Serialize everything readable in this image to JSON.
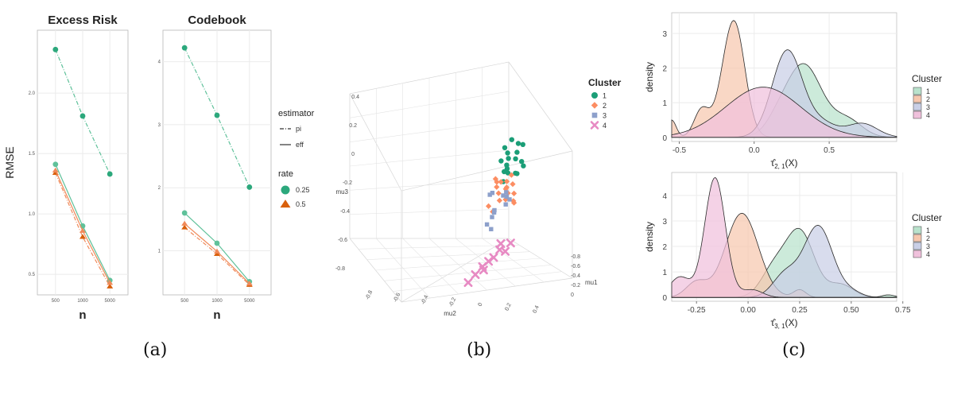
{
  "captions": {
    "a": "(a)",
    "b": "(b)",
    "c": "(c)"
  },
  "colors": {
    "teal": "#2ca87c",
    "teal_light": "#5fc19a",
    "orange": "#d9600c",
    "orange_light": "#f08a5a",
    "c1": "#1b9e77",
    "c2": "#fc8d62",
    "c3": "#8da0cb",
    "c4": "#e78ac3",
    "d1": "#b9e2cc",
    "d2": "#f6c7ae",
    "d3": "#c9cfe6",
    "d4": "#f0c1dc"
  },
  "chart_data": [
    {
      "id": "a1",
      "type": "line",
      "title": "Excess Risk",
      "xlabel": "n",
      "ylabel": "RMSE",
      "categories": [
        "500",
        "1000",
        "5000"
      ],
      "yticks": [
        0.5,
        1.0,
        1.5,
        2.0
      ],
      "ytick_labels": [
        "0.5",
        "1.0",
        "1.5",
        "2.0"
      ],
      "ylim": [
        0.33,
        2.52
      ],
      "series": [
        {
          "name": "0.25 pi",
          "rate": "0.25",
          "estimator": "pi",
          "values": [
            2.36,
            1.81,
            1.33
          ]
        },
        {
          "name": "0.25 eff",
          "rate": "0.25",
          "estimator": "eff",
          "values": [
            1.41,
            0.9,
            0.45
          ]
        },
        {
          "name": "0.5 pi",
          "rate": "0.5",
          "estimator": "pi",
          "values": [
            1.34,
            0.81,
            0.4
          ]
        },
        {
          "name": "0.5 eff",
          "rate": "0.5",
          "estimator": "eff",
          "values": [
            1.36,
            0.86,
            0.43
          ]
        }
      ]
    },
    {
      "id": "a2",
      "type": "line",
      "title": "Codebook",
      "xlabel": "n",
      "ylabel": "",
      "categories": [
        "500",
        "1000",
        "5000"
      ],
      "yticks": [
        1,
        2,
        3,
        4
      ],
      "ytick_labels": [
        "1",
        "2",
        "3",
        "4"
      ],
      "ylim": [
        0.3,
        4.5
      ],
      "series": [
        {
          "name": "0.25 pi",
          "rate": "0.25",
          "estimator": "pi",
          "values": [
            4.22,
            3.15,
            2.01
          ]
        },
        {
          "name": "0.25 eff",
          "rate": "0.25",
          "estimator": "eff",
          "values": [
            1.6,
            1.12,
            0.51
          ]
        },
        {
          "name": "0.5 pi",
          "rate": "0.5",
          "estimator": "pi",
          "values": [
            1.37,
            0.95,
            0.46
          ]
        },
        {
          "name": "0.5 eff",
          "rate": "0.5",
          "estimator": "eff",
          "values": [
            1.43,
            0.99,
            0.48
          ]
        }
      ]
    },
    {
      "id": "b",
      "type": "scatter",
      "title": "",
      "axes": {
        "x": "mu1",
        "y": "mu2",
        "z": "mu3"
      },
      "axis_tick_labels": {
        "mu3": [
          "0.4",
          "0.2",
          "0",
          "-0.2",
          "-0.4",
          "-0.6",
          "-0.8"
        ],
        "mu2": [
          "-0.8",
          "-0.6",
          "-0.4",
          "-0.2",
          "0",
          "0.2",
          "0.4"
        ],
        "mu1": [
          "-0.8",
          "-0.6",
          "-0.4",
          "-0.2",
          "0"
        ]
      },
      "legend": {
        "title": "Cluster",
        "position": "top-right",
        "entries": [
          "1",
          "2",
          "3",
          "4"
        ]
      },
      "series": [
        {
          "name": "1",
          "values": [
            [
              -0.07,
              0.37,
              0.33
            ],
            [
              -0.02,
              0.3,
              0.25
            ],
            [
              -0.05,
              0.28,
              0.18
            ],
            [
              -0.1,
              0.35,
              0.4
            ],
            [
              0.0,
              0.33,
              0.22
            ],
            [
              -0.08,
              0.25,
              0.3
            ],
            [
              -0.03,
              0.4,
              0.28
            ],
            [
              -0.12,
              0.31,
              0.15
            ],
            [
              0.02,
              0.36,
              0.35
            ],
            [
              -0.06,
              0.22,
              0.2
            ],
            [
              -0.09,
              0.42,
              0.38
            ],
            [
              -0.01,
              0.27,
              0.12
            ],
            [
              -0.04,
              0.34,
              0.45
            ],
            [
              -0.11,
              0.38,
              0.24
            ],
            [
              0.03,
              0.29,
              0.3
            ],
            [
              -0.07,
              0.45,
              0.2
            ],
            [
              -0.05,
              0.24,
              0.4
            ],
            [
              -0.02,
              0.41,
              0.16
            ]
          ]
        },
        {
          "name": "2",
          "values": [
            [
              -0.52,
              -0.3,
              0.05
            ],
            [
              -0.48,
              -0.25,
              0.1
            ],
            [
              -0.55,
              -0.35,
              -0.05
            ],
            [
              -0.45,
              -0.2,
              0.0
            ],
            [
              -0.5,
              -0.4,
              0.12
            ],
            [
              -0.58,
              -0.28,
              -0.1
            ],
            [
              -0.44,
              -0.33,
              0.08
            ],
            [
              -0.53,
              -0.22,
              -0.02
            ],
            [
              -0.47,
              -0.38,
              0.15
            ],
            [
              -0.56,
              -0.45,
              0.02
            ],
            [
              -0.49,
              -0.18,
              -0.08
            ],
            [
              -0.6,
              -0.32,
              0.06
            ],
            [
              -0.42,
              -0.27,
              -0.04
            ],
            [
              -0.51,
              -0.36,
              0.11
            ],
            [
              -0.54,
              -0.5,
              -0.12
            ],
            [
              -0.46,
              -0.24,
              0.04
            ],
            [
              -0.57,
              -0.3,
              0.14
            ],
            [
              -0.43,
              -0.42,
              -0.06
            ]
          ]
        },
        {
          "name": "3",
          "values": [
            [
              -0.1,
              0.05,
              -0.1
            ],
            [
              -0.15,
              0.1,
              0.0
            ],
            [
              -0.08,
              -0.02,
              -0.2
            ],
            [
              -0.2,
              0.12,
              -0.05
            ],
            [
              -0.12,
              0.0,
              0.05
            ],
            [
              -0.05,
              0.08,
              -0.15
            ],
            [
              -0.18,
              -0.05,
              -0.12
            ],
            [
              -0.14,
              0.15,
              0.02
            ],
            [
              -0.09,
              0.02,
              -0.25
            ],
            [
              -0.22,
              0.06,
              -0.02
            ],
            [
              -0.11,
              0.18,
              -0.08
            ],
            [
              -0.16,
              -0.08,
              0.04
            ]
          ]
        },
        {
          "name": "4",
          "values": [
            [
              -0.35,
              -0.4,
              -0.55
            ],
            [
              -0.3,
              -0.2,
              -0.5
            ],
            [
              -0.28,
              -0.1,
              -0.45
            ],
            [
              -0.25,
              -0.05,
              -0.4
            ],
            [
              -0.4,
              -0.55,
              -0.6
            ],
            [
              -0.33,
              -0.3,
              -0.52
            ],
            [
              -0.38,
              -0.15,
              -0.48
            ],
            [
              -0.32,
              -0.35,
              -0.58
            ],
            [
              -0.45,
              -0.7,
              -0.65
            ],
            [
              -0.27,
              0.05,
              -0.42
            ]
          ]
        }
      ]
    },
    {
      "id": "c1",
      "type": "area",
      "title": "",
      "xlabel_main": "τ̂",
      "xlabel_sub": "2, 1",
      "xlabel_tail": "(X)",
      "ylabel": "density",
      "xticks": [
        -0.5,
        0.0,
        0.5
      ],
      "xtick_labels": [
        "-0.5",
        "0.0",
        "0.5"
      ],
      "yticks": [
        0,
        1,
        2,
        3
      ],
      "ytick_labels": [
        "0",
        "1",
        "2",
        "3"
      ],
      "xlim": [
        -0.55,
        0.95
      ],
      "ylim": [
        -0.12,
        3.6
      ],
      "legend": {
        "title": "Cluster",
        "position": "right",
        "entries": [
          "1",
          "2",
          "3",
          "4"
        ]
      },
      "series": [
        {
          "name": "1",
          "components": [
            [
              0.33,
              0.12,
              2.1
            ],
            [
              0.62,
              0.1,
              0.5
            ],
            [
              0.15,
              0.08,
              0.3
            ]
          ]
        },
        {
          "name": "2",
          "components": [
            [
              -0.13,
              0.07,
              3.2
            ],
            [
              -0.35,
              0.05,
              0.8
            ],
            [
              -0.55,
              0.03,
              0.5
            ],
            [
              -0.22,
              0.06,
              0.5
            ]
          ]
        },
        {
          "name": "3",
          "components": [
            [
              0.22,
              0.1,
              2.5
            ],
            [
              0.72,
              0.1,
              0.4
            ],
            [
              0.45,
              0.1,
              0.4
            ]
          ]
        },
        {
          "name": "4",
          "components": [
            [
              0.06,
              0.25,
              1.45
            ]
          ]
        }
      ]
    },
    {
      "id": "c2",
      "type": "area",
      "title": "",
      "xlabel_main": "τ̂",
      "xlabel_sub": "3, 1",
      "xlabel_tail": "(X)",
      "ylabel": "density",
      "xticks": [
        -0.25,
        0.0,
        0.25,
        0.5,
        0.75
      ],
      "xtick_labels": [
        "-0.25",
        "0.00",
        "0.25",
        "0.50",
        "0.75"
      ],
      "yticks": [
        0,
        1,
        2,
        3,
        4
      ],
      "ytick_labels": [
        "0",
        "1",
        "2",
        "3",
        "4"
      ],
      "xlim": [
        -0.37,
        0.72
      ],
      "ylim": [
        -0.15,
        4.9
      ],
      "legend": {
        "title": "Cluster",
        "position": "right",
        "entries": [
          "1",
          "2",
          "3",
          "4"
        ]
      },
      "series": [
        {
          "name": "1",
          "components": [
            [
              0.25,
              0.07,
              2.6
            ],
            [
              0.12,
              0.06,
              1.0
            ],
            [
              0.45,
              0.06,
              0.5
            ],
            [
              0.68,
              0.03,
              0.1
            ]
          ]
        },
        {
          "name": "2",
          "components": [
            [
              -0.03,
              0.08,
              3.3
            ],
            [
              -0.25,
              0.05,
              0.6
            ],
            [
              0.25,
              0.03,
              0.3
            ]
          ]
        },
        {
          "name": "3",
          "components": [
            [
              0.34,
              0.07,
              2.8
            ],
            [
              0.18,
              0.06,
              0.9
            ],
            [
              0.5,
              0.05,
              0.2
            ]
          ]
        },
        {
          "name": "4",
          "components": [
            [
              -0.16,
              0.05,
              4.7
            ],
            [
              -0.33,
              0.05,
              0.8
            ],
            [
              0.02,
              0.05,
              0.3
            ]
          ]
        }
      ]
    }
  ],
  "panel_a_legend": {
    "estimator_title": "estimator",
    "estimator_items": [
      "pi",
      "eff"
    ],
    "rate_title": "rate",
    "rate_items": [
      "0.25",
      "0.5"
    ]
  }
}
